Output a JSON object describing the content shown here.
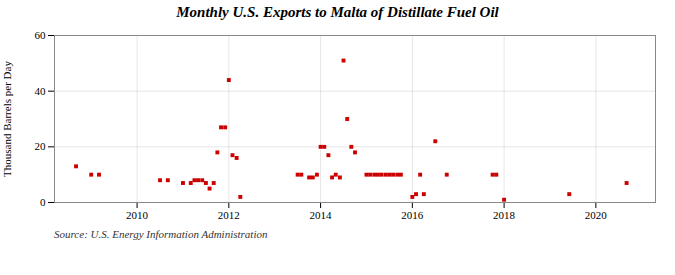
{
  "chart_data": {
    "type": "scatter",
    "title": "Monthly U.S. Exports to Malta of Distillate Fuel Oil",
    "ylabel": "Thousand Barrels per Day",
    "source": "Source: U.S. Energy Information Administration",
    "color": "#cc0000",
    "marker": "square",
    "grid": true,
    "xlim": [
      2008.2,
      2021.3
    ],
    "xticks": [
      2010,
      2012,
      2014,
      2016,
      2018,
      2020
    ],
    "ylim": [
      0,
      60
    ],
    "yticks": [
      0,
      20,
      40,
      60
    ],
    "x": [
      2008.67,
      2009.0,
      2009.17,
      2010.5,
      2010.67,
      2011.0,
      2011.17,
      2011.25,
      2011.33,
      2011.42,
      2011.5,
      2011.58,
      2011.67,
      2011.75,
      2011.83,
      2011.92,
      2012.0,
      2012.08,
      2012.17,
      2012.25,
      2013.5,
      2013.58,
      2013.75,
      2013.83,
      2013.92,
      2014.0,
      2014.08,
      2014.17,
      2014.25,
      2014.33,
      2014.42,
      2014.5,
      2014.58,
      2014.67,
      2014.75,
      2015.0,
      2015.08,
      2015.17,
      2015.25,
      2015.33,
      2015.42,
      2015.5,
      2015.58,
      2015.67,
      2015.75,
      2016.0,
      2016.08,
      2016.17,
      2016.25,
      2016.5,
      2016.75,
      2017.75,
      2017.83,
      2018.0,
      2019.42,
      2020.67
    ],
    "values": [
      13,
      10,
      10,
      8,
      8,
      7,
      7,
      8,
      8,
      8,
      7,
      5,
      7,
      18,
      27,
      27,
      44,
      17,
      16,
      2,
      10,
      10,
      9,
      9,
      10,
      20,
      20,
      17,
      9,
      10,
      9,
      51,
      30,
      20,
      18,
      10,
      10,
      10,
      10,
      10,
      10,
      10,
      10,
      10,
      10,
      2,
      3,
      10,
      3,
      22,
      10,
      10,
      10,
      1,
      3,
      7
    ]
  }
}
